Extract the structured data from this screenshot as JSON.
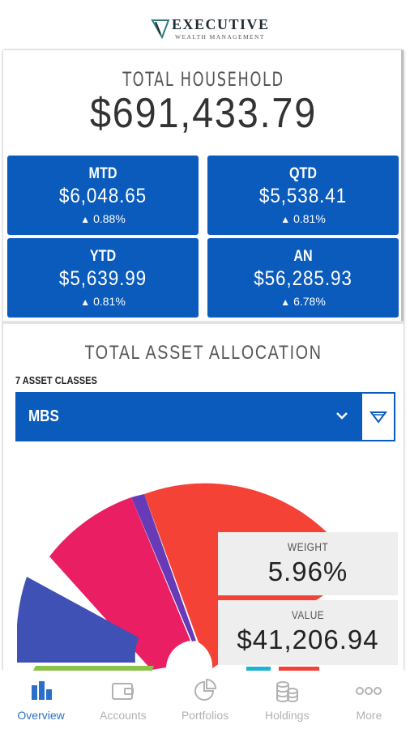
{
  "brand": {
    "title": "EXECUTIVE",
    "subtitle": "WEALTH MANAGEMENT"
  },
  "household": {
    "label": "TOTAL HOUSEHOLD",
    "value": "$691,433.79"
  },
  "tiles": [
    {
      "title": "MTD",
      "value": "$6,048.65",
      "change": "0.88%"
    },
    {
      "title": "QTD",
      "value": "$5,538.41",
      "change": "0.81%"
    },
    {
      "title": "YTD",
      "value": "$5,639.99",
      "change": "0.81%"
    },
    {
      "title": "AN",
      "value": "$56,285.93",
      "change": "6.78%"
    }
  ],
  "allocation": {
    "title": "TOTAL ASSET ALLOCATION",
    "count_label": "7 ASSET CLASSES",
    "selected": "MBS",
    "weight_label": "WEIGHT",
    "weight_value": "5.96%",
    "value_label": "VALUE",
    "value_value": "$41,206.94"
  },
  "colors": {
    "primary": "#0b5bbd",
    "segment_red": "#f44336",
    "segment_pink": "#e91e63",
    "segment_purple": "#673ab7",
    "segment_indigo": "#3f51b5",
    "segment_green": "#8bc34a",
    "segment_cyan": "#1fb3d2"
  },
  "nav": {
    "items": [
      {
        "label": "Overview",
        "icon": "bar-chart-icon",
        "active": true
      },
      {
        "label": "Accounts",
        "icon": "wallet-icon",
        "active": false
      },
      {
        "label": "Portfolios",
        "icon": "pie-chart-icon",
        "active": false
      },
      {
        "label": "Holdings",
        "icon": "coins-icon",
        "active": false
      },
      {
        "label": "More",
        "icon": "more-dots-icon",
        "active": false
      }
    ]
  }
}
